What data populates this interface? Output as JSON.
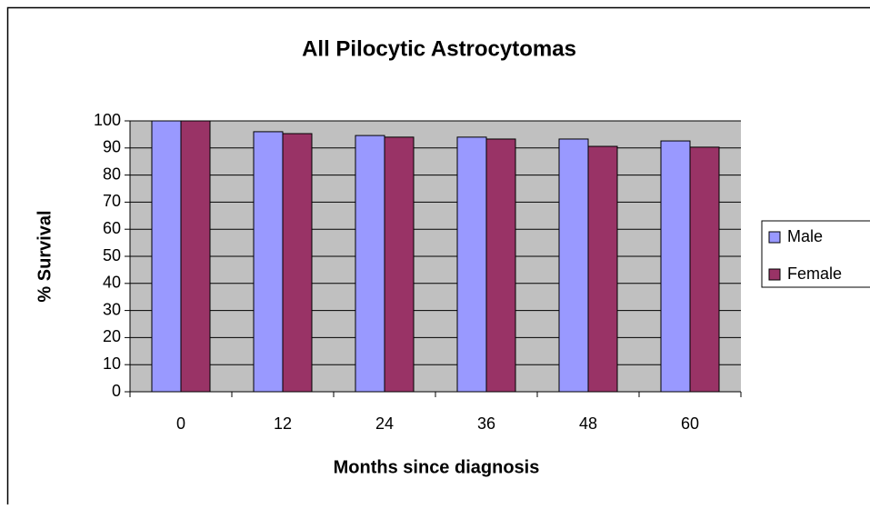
{
  "chart_data": {
    "type": "bar",
    "title": "All Pilocytic Astrocytomas",
    "x_label": "Months since diagnosis",
    "y_label": "% Survival",
    "categories": [
      "0",
      "12",
      "24",
      "36",
      "48",
      "60"
    ],
    "series": [
      {
        "name": "Male",
        "color": "#9999ff",
        "values": [
          100,
          96,
          94.6,
          94,
          93.3,
          92.6
        ]
      },
      {
        "name": "Female",
        "color": "#993366",
        "values": [
          100,
          95.3,
          94,
          93.3,
          90.6,
          90.3
        ]
      }
    ],
    "ylim": [
      0,
      100
    ],
    "yticks": [
      0,
      10,
      20,
      30,
      40,
      50,
      60,
      70,
      80,
      90,
      100
    ],
    "grid": true,
    "plot_background": "#c0c0c0",
    "legend": "right"
  }
}
